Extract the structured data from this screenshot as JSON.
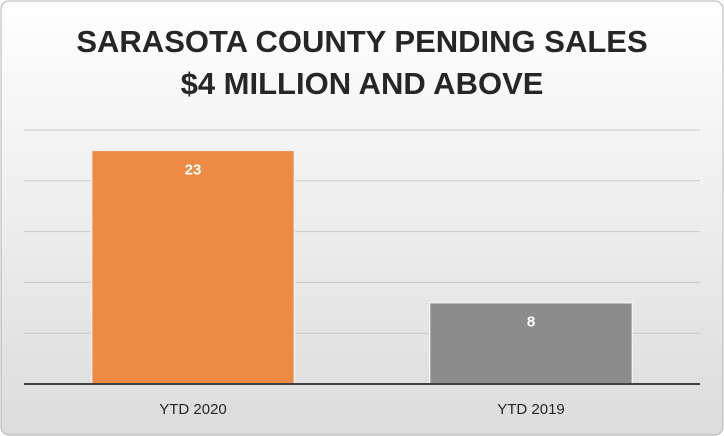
{
  "chart_data": {
    "type": "bar",
    "title": [
      "SARASOTA COUNTY PENDING SALES",
      "$4 MILLION AND ABOVE"
    ],
    "categories": [
      "YTD 2020",
      "YTD 2019"
    ],
    "values": [
      23,
      8
    ],
    "colors": [
      "#ed8b45",
      "#8c8c8c"
    ],
    "ylim": [
      0,
      25
    ],
    "yticks": [
      0,
      5,
      10,
      15,
      20,
      25
    ],
    "grid": true
  }
}
